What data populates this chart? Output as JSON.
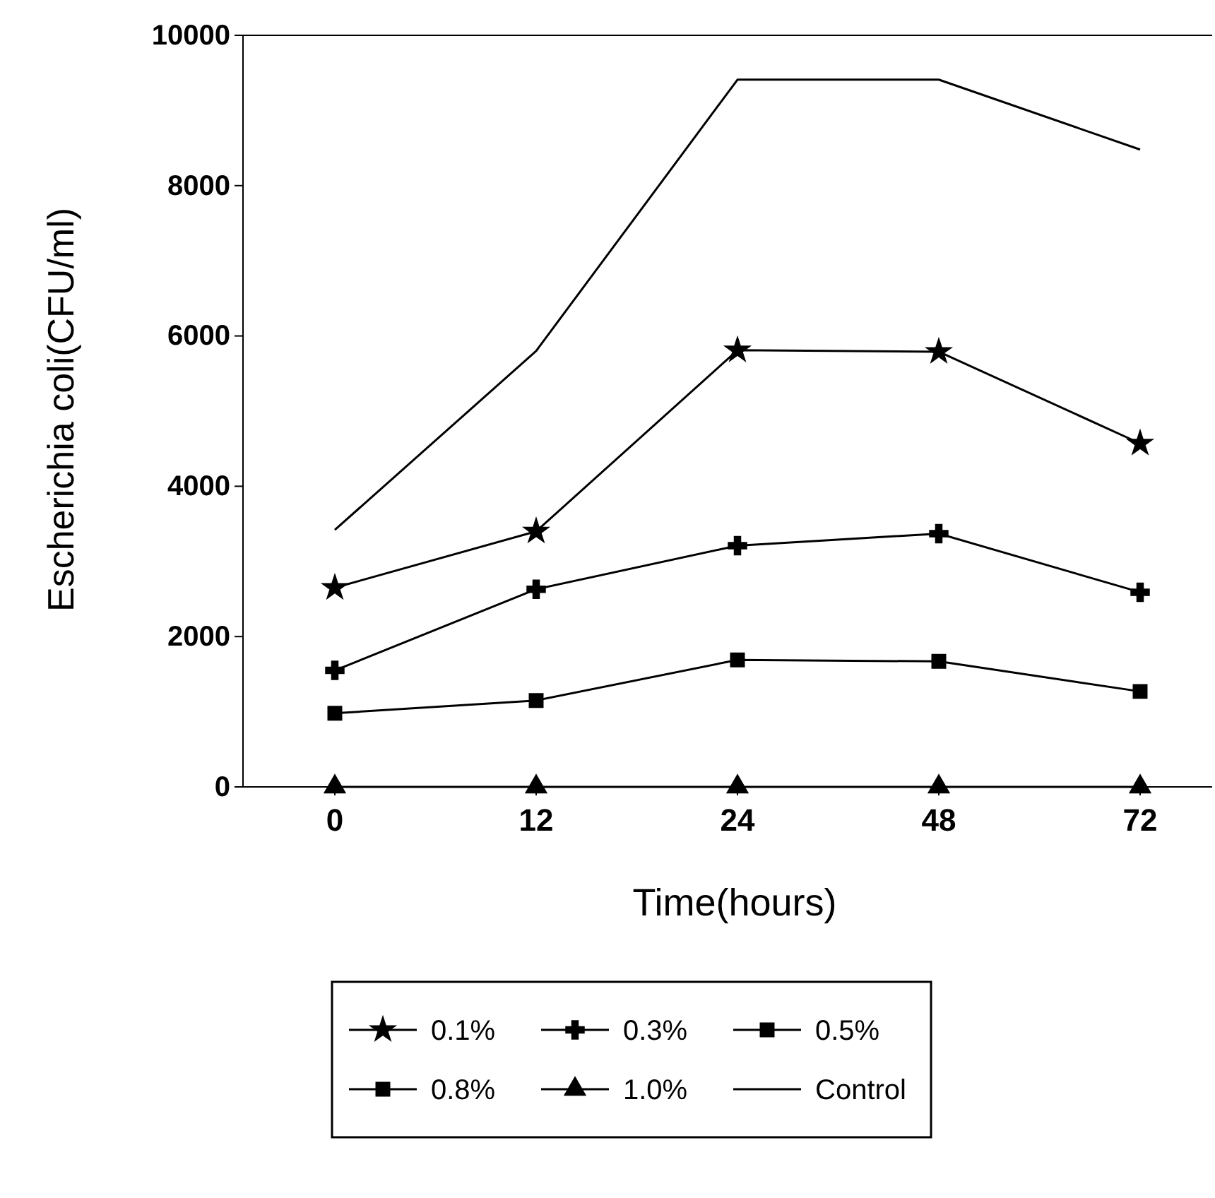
{
  "chart_data": {
    "type": "line",
    "xlabel": "Time(hours)",
    "ylabel": "Escherichia coli(CFU/ml)",
    "categories": [
      "0",
      "12",
      "24",
      "48",
      "72"
    ],
    "ylim": [
      0,
      10000
    ],
    "yticks": [
      0,
      2000,
      4000,
      6000,
      8000,
      10000
    ],
    "grid": false,
    "legend": "bottom",
    "series": [
      {
        "name": "0.1%",
        "color": "#000000",
        "marker": "star",
        "values": [
          2650,
          3400,
          5810,
          5790,
          4570
        ]
      },
      {
        "name": "0.3%",
        "color": "#000000",
        "marker": "cross",
        "values": [
          1550,
          2630,
          3210,
          3370,
          2590
        ]
      },
      {
        "name": "0.5%",
        "color": "#000000",
        "marker": "square",
        "values": [
          980,
          1150,
          1690,
          1670,
          1270
        ]
      },
      {
        "name": "0.8%",
        "color": "#000000",
        "marker": "square",
        "values": [
          null,
          null,
          null,
          null,
          null
        ]
      },
      {
        "name": "1.0%",
        "color": "#000000",
        "marker": "triangle",
        "values": [
          0,
          0,
          0,
          0,
          0
        ]
      },
      {
        "name": "Control",
        "color": "#000000",
        "marker": "none",
        "values": [
          3420,
          5800,
          9410,
          9410,
          8480
        ]
      }
    ]
  }
}
